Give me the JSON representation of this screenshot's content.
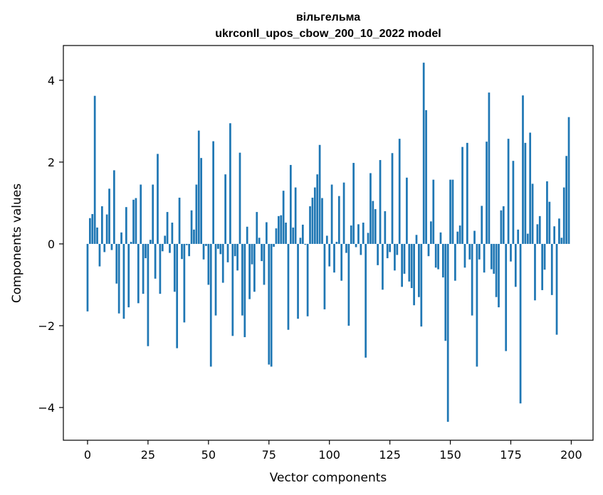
{
  "chart_data": {
    "type": "bar",
    "title_line1": "вільгельма",
    "title_line2": "ukrconll_upos_cbow_200_10_2022 model",
    "xlabel": "Vector components",
    "ylabel": "Components values",
    "xlim": [
      -10,
      209
    ],
    "ylim": [
      -4.8,
      4.85
    ],
    "xticks": [
      0,
      25,
      50,
      75,
      100,
      125,
      150,
      175,
      200
    ],
    "yticks": [
      -4,
      -2,
      0,
      2,
      4
    ],
    "ytick_labels": [
      "−4",
      "−2",
      "0",
      "2",
      "4"
    ],
    "grid": false,
    "bar_color": "#1f77b4",
    "values": [
      -1.65,
      0.63,
      0.73,
      3.62,
      0.4,
      -0.55,
      0.92,
      -0.2,
      0.72,
      1.35,
      -0.15,
      1.8,
      -0.97,
      -1.7,
      0.28,
      -1.83,
      0.9,
      -1.55,
      0.05,
      1.08,
      1.12,
      -1.45,
      1.45,
      -1.22,
      -0.35,
      -2.5,
      0.1,
      1.45,
      -0.85,
      2.2,
      -1.22,
      -0.18,
      0.2,
      0.78,
      -0.22,
      0.52,
      -1.17,
      -2.55,
      1.13,
      -0.37,
      -1.92,
      -0.03,
      -0.3,
      0.82,
      0.35,
      1.45,
      2.77,
      2.1,
      -0.38,
      -0.05,
      -1.0,
      -3.0,
      2.51,
      -1.75,
      -0.12,
      -0.25,
      -0.95,
      1.7,
      -0.45,
      2.95,
      -2.25,
      -0.3,
      -0.65,
      2.23,
      -1.75,
      -2.28,
      0.42,
      -1.35,
      -0.5,
      -1.17,
      0.78,
      0.15,
      -0.42,
      -1.0,
      0.53,
      -2.95,
      -3.0,
      -0.07,
      0.38,
      0.68,
      0.7,
      1.3,
      0.52,
      -2.1,
      1.93,
      0.4,
      1.38,
      -1.83,
      0.15,
      0.47,
      -0.02,
      -1.77,
      0.92,
      1.13,
      1.38,
      1.7,
      2.42,
      1.12,
      -1.6,
      0.2,
      -0.55,
      1.45,
      -0.7,
      0.05,
      1.17,
      -0.9,
      1.5,
      -0.22,
      -2.0,
      0.45,
      1.98,
      -0.08,
      0.48,
      -0.27,
      0.52,
      -2.78,
      0.27,
      1.73,
      1.05,
      0.85,
      -0.52,
      2.05,
      -1.12,
      0.8,
      -0.35,
      -0.2,
      2.22,
      -0.65,
      -0.27,
      2.57,
      -1.05,
      -0.73,
      1.62,
      -0.92,
      -1.08,
      -1.5,
      0.22,
      -1.3,
      -2.02,
      4.43,
      3.27,
      -0.3,
      0.55,
      1.57,
      -0.58,
      -0.62,
      0.28,
      -0.82,
      -2.37,
      -4.35,
      1.57,
      1.57,
      -0.9,
      0.3,
      0.45,
      2.37,
      -0.58,
      2.47,
      -0.38,
      -1.75,
      0.32,
      -3.0,
      -0.38,
      0.93,
      -0.7,
      2.5,
      3.7,
      -0.62,
      -0.73,
      -1.3,
      -1.55,
      0.82,
      0.92,
      -2.62,
      2.57,
      -0.43,
      2.03,
      -1.05,
      0.35,
      -3.9,
      3.63,
      2.47,
      0.25,
      2.72,
      1.47,
      -1.38,
      0.48,
      0.68,
      -1.13,
      -0.63,
      1.53,
      1.03,
      -1.25,
      0.43,
      -2.22,
      0.62,
      0.15,
      1.38,
      2.15,
      3.1
    ]
  }
}
